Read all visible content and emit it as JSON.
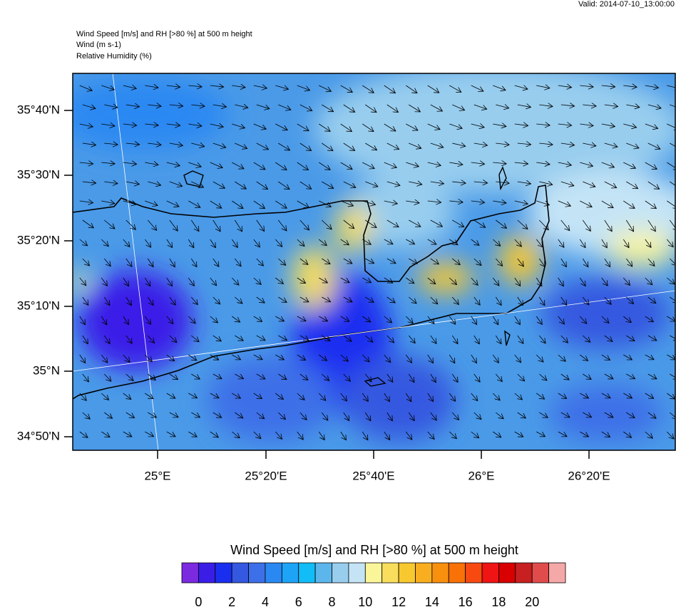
{
  "header": {
    "valid": "Valid: 2014-07-10_13:00:00",
    "lines": [
      "Wind Speed [m/s] and RH [>80 %] at 500 m height",
      "Wind   (m s-1)",
      "Relative Humidity   (%)"
    ]
  },
  "map": {
    "lat_ticks": [
      "35°40'N",
      "35°30'N",
      "35°20'N",
      "35°10'N",
      "35°N",
      "34°50'N"
    ],
    "lon_ticks": [
      "25°E",
      "25°20'E",
      "25°40'E",
      "26°E",
      "26°20'E"
    ]
  },
  "colorbar": {
    "title": "Wind Speed [m/s] and RH [>80 %] at 500 m height",
    "colors": [
      "#7b2ae0",
      "#3a1ee8",
      "#1a2ef0",
      "#3558e0",
      "#3d70e8",
      "#2a88f2",
      "#1ea4f6",
      "#12bcf6",
      "#5cb6ec",
      "#98cdee",
      "#c4e4f6",
      "#fbf59a",
      "#f8de5c",
      "#f8c830",
      "#f8ae1e",
      "#f8900e",
      "#f87208",
      "#f84a10",
      "#f01414",
      "#d80000",
      "#c82020",
      "#e04c4c",
      "#f5a8a8"
    ],
    "ticks": [
      0,
      2,
      4,
      6,
      8,
      10,
      12,
      14,
      16,
      18,
      20
    ]
  }
}
